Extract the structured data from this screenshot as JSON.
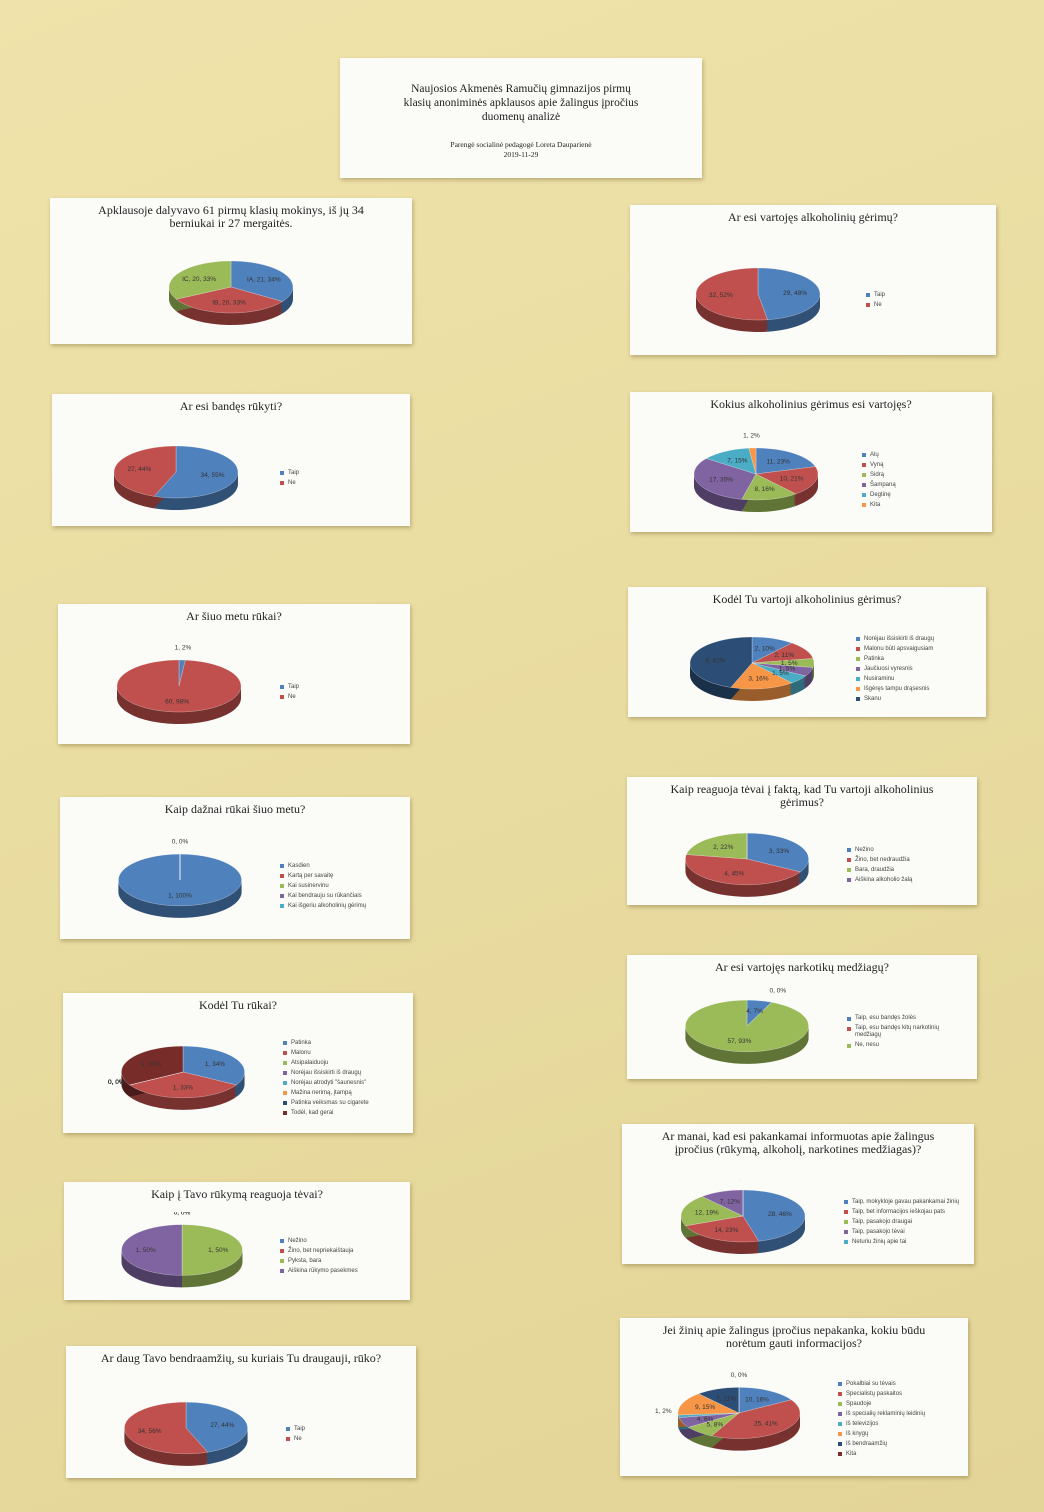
{
  "header": {
    "title": "Naujosios Akmenės Ramučių gimnazijos pirmų klasių anoniminės apklausos apie žalingus įpročius duomenų analizė",
    "author": "Parengė socialinė pedagogė Loreta Dauparienė",
    "date": "2019-11-29"
  },
  "chart_data": [
    {
      "type": "pie",
      "title": "Apklausoje dalyvavo 61 pirmų klasių mokinys, iš jų 34 berniukai ir 27 mergaitės.",
      "values": [
        21,
        20,
        20
      ],
      "value_labels": [
        "IA, 21, 34%",
        "IB, 20, 33%",
        "IC, 20, 33%"
      ],
      "colors": [
        "#4f81bd",
        "#c0504d",
        "#9bbb59"
      ]
    },
    {
      "type": "pie",
      "title": "Ar esi vartojęs alkoholinių gėrimų?",
      "categories": [
        "Taip",
        "Ne"
      ],
      "values": [
        29,
        32
      ],
      "value_labels": [
        "29, 48%",
        "32, 52%"
      ],
      "colors": [
        "#4f81bd",
        "#c0504d"
      ],
      "legend": "right"
    },
    {
      "type": "pie",
      "title": "Ar esi bandęs rūkyti?",
      "categories": [
        "Taip",
        "Ne"
      ],
      "values": [
        34,
        27
      ],
      "value_labels": [
        "34, 55%",
        "27, 44%"
      ],
      "colors": [
        "#4f81bd",
        "#c0504d"
      ],
      "legend": "right"
    },
    {
      "type": "pie",
      "title": "Kokius alkoholinius gėrimus esi vartojęs?",
      "categories": [
        "Alų",
        "Vyną",
        "Sidrą",
        "Šampaną",
        "Degtinę",
        "Kita"
      ],
      "values": [
        11,
        10,
        8,
        17,
        7,
        1
      ],
      "value_labels": [
        "11, 23%",
        "10, 21%",
        "8, 16%",
        "17, 35%",
        "7, 15%",
        "1, 2%"
      ],
      "colors": [
        "#4f81bd",
        "#c0504d",
        "#9bbb59",
        "#8064a2",
        "#4bacc6",
        "#f79646"
      ],
      "legend": "right"
    },
    {
      "type": "pie",
      "title": "Ar šiuo metu rūkai?",
      "categories": [
        "Taip",
        "Ne"
      ],
      "values": [
        1,
        60
      ],
      "value_labels": [
        "1, 2%",
        "60, 98%"
      ],
      "colors": [
        "#4f81bd",
        "#c0504d"
      ],
      "legend": "right"
    },
    {
      "type": "pie",
      "title": "Kodėl Tu vartoji alkoholinius gėrimus?",
      "categories": [
        "Norėjau išsiskirti iš draugų",
        "Malonu būti apsvaigusiam",
        "Patinka",
        "Jaučiuosi vyresnis",
        "Nusiraminu",
        "Išgėręs tampu drąsesnis",
        "Skanu"
      ],
      "values": [
        2,
        2,
        1,
        1,
        1,
        3,
        8
      ],
      "value_labels": [
        "2, 10%",
        "2, 11%",
        "1, 5%",
        "1, 5%",
        "1, 5%",
        "3, 16%",
        "8, 42%"
      ],
      "colors": [
        "#4f81bd",
        "#c0504d",
        "#9bbb59",
        "#8064a2",
        "#4bacc6",
        "#f79646",
        "#2c4d75"
      ],
      "legend": "right"
    },
    {
      "type": "pie",
      "title": "Kaip dažnai rūkai šiuo metu?",
      "categories": [
        "Kasdien",
        "Kartą per savaitę",
        "Kai susinervinu",
        "Kai bendrauju su rūkančiais",
        "Kai išgeriu alkoholinių gėrimų"
      ],
      "values": [
        1,
        0,
        0,
        0,
        0
      ],
      "value_labels": [
        "1, 100%",
        "0, 0%",
        null,
        null,
        null
      ],
      "colors": [
        "#4f81bd",
        "#c0504d",
        "#9bbb59",
        "#8064a2",
        "#4bacc6"
      ],
      "legend": "right"
    },
    {
      "type": "pie",
      "title": "Kaip reaguoja tėvai į faktą, kad Tu vartoji alkoholinius gėrimus?",
      "categories": [
        "Nežino",
        "Žino, bet nedraudžia",
        "Bara, draudžia",
        "Aiškina alkoholio žalą"
      ],
      "values": [
        3,
        4,
        2,
        0
      ],
      "value_labels": [
        "3, 33%",
        "4, 45%",
        "2, 22%",
        "0, 0%"
      ],
      "colors": [
        "#4f81bd",
        "#c0504d",
        "#9bbb59",
        "#8064a2"
      ],
      "legend": "right"
    },
    {
      "type": "pie",
      "title": "Kodėl Tu rūkai?",
      "categories": [
        "Patinka",
        "Malonu",
        "Atsipalaiduoju",
        "Norėjau išsiskirti iš draugų",
        "Norėjau atrodyti \"šaunesnis\"",
        "Mažina nerimą, įtampą",
        "Patinka veiksmas su cigarete",
        "Todėl, kad gerai"
      ],
      "values": [
        1,
        1,
        0,
        0,
        0,
        0,
        0,
        1
      ],
      "value_labels": [
        "1, 34%",
        "1, 33%",
        "0, 0%",
        "0, 0%",
        "0, 0%",
        "0, 0%",
        "0, 0%",
        "1, 33%"
      ],
      "colors": [
        "#4f81bd",
        "#c0504d",
        "#9bbb59",
        "#8064a2",
        "#4bacc6",
        "#f79646",
        "#2c4d75",
        "#772c2a"
      ],
      "legend": "right"
    },
    {
      "type": "pie",
      "title": "Ar esi vartojęs narkotikų medžiagų?",
      "categories": [
        "Taip, esu bandęs žolės",
        "Taip, esu bandęs kitų narkotinių medžiagų",
        "Ne, nesu"
      ],
      "values": [
        4,
        0,
        57
      ],
      "value_labels": [
        "4, 7%",
        "0, 0%",
        "57, 93%"
      ],
      "colors": [
        "#4f81bd",
        "#c0504d",
        "#9bbb59"
      ],
      "legend": "right"
    },
    {
      "type": "pie",
      "title": "Kaip į Tavo rūkymą reaguoja tėvai?",
      "categories": [
        "Nežino",
        "Žino, bet nepriekaištauja",
        "Pyksta, bara",
        "Aiškina rūkymo pasekmes"
      ],
      "values": [
        0,
        0,
        1,
        1
      ],
      "value_labels": [
        "0, 0%",
        "0, 0%",
        "1, 50%",
        "1, 50%"
      ],
      "colors": [
        "#4f81bd",
        "#c0504d",
        "#9bbb59",
        "#8064a2"
      ],
      "legend": "right"
    },
    {
      "type": "pie",
      "title": "Ar manai, kad esi pakankamai informuotas apie žalingus įpročius (rūkymą, alkoholį, narkotines medžiagas)?",
      "categories": [
        "Taip, mokykloje gavau pakankamai žinių",
        "Taip, bet informacijos ieškojau pats",
        "Taip, pasakojo draugai",
        "Taip, pasakojo tėvai",
        "Neturiu žinių apie tai"
      ],
      "values": [
        28,
        14,
        12,
        7,
        0
      ],
      "value_labels": [
        "28, 46%",
        "14, 23%",
        "12, 19%",
        "7, 12%",
        "0, 0%"
      ],
      "colors": [
        "#4f81bd",
        "#c0504d",
        "#9bbb59",
        "#8064a2",
        "#4bacc6"
      ],
      "legend": "right"
    },
    {
      "type": "pie",
      "title": "Ar daug Tavo bendraamžių, su kuriais Tu draugauji, rūko?",
      "categories": [
        "Taip",
        "Ne"
      ],
      "values": [
        27,
        34
      ],
      "value_labels": [
        "27, 44%",
        "34, 56%"
      ],
      "colors": [
        "#4f81bd",
        "#c0504d"
      ],
      "legend": "right"
    },
    {
      "type": "pie",
      "title": "Jei žinių apie žalingus įpročius nepakanka, kokiu būdu norėtum gauti informacijos?",
      "categories": [
        "Pokalbiai su tėvais",
        "Specialistų paskaitos",
        "Spaudoje",
        "Iš specialių reklaminių leidinių",
        "Iš televizijos",
        "Iš knygų",
        "Iš bendraamžių",
        "Kita"
      ],
      "values": [
        10,
        25,
        5,
        4,
        1,
        9,
        7,
        0
      ],
      "value_labels": [
        "10, 16%",
        "25, 41%",
        "5, 8%",
        "4, 6%",
        "1, 2%",
        "9, 15%",
        "7, 11%",
        "0, 0%"
      ],
      "colors": [
        "#4f81bd",
        "#c0504d",
        "#9bbb59",
        "#8064a2",
        "#4bacc6",
        "#f79646",
        "#2c4d75",
        "#772c2a"
      ],
      "legend": "right"
    }
  ]
}
